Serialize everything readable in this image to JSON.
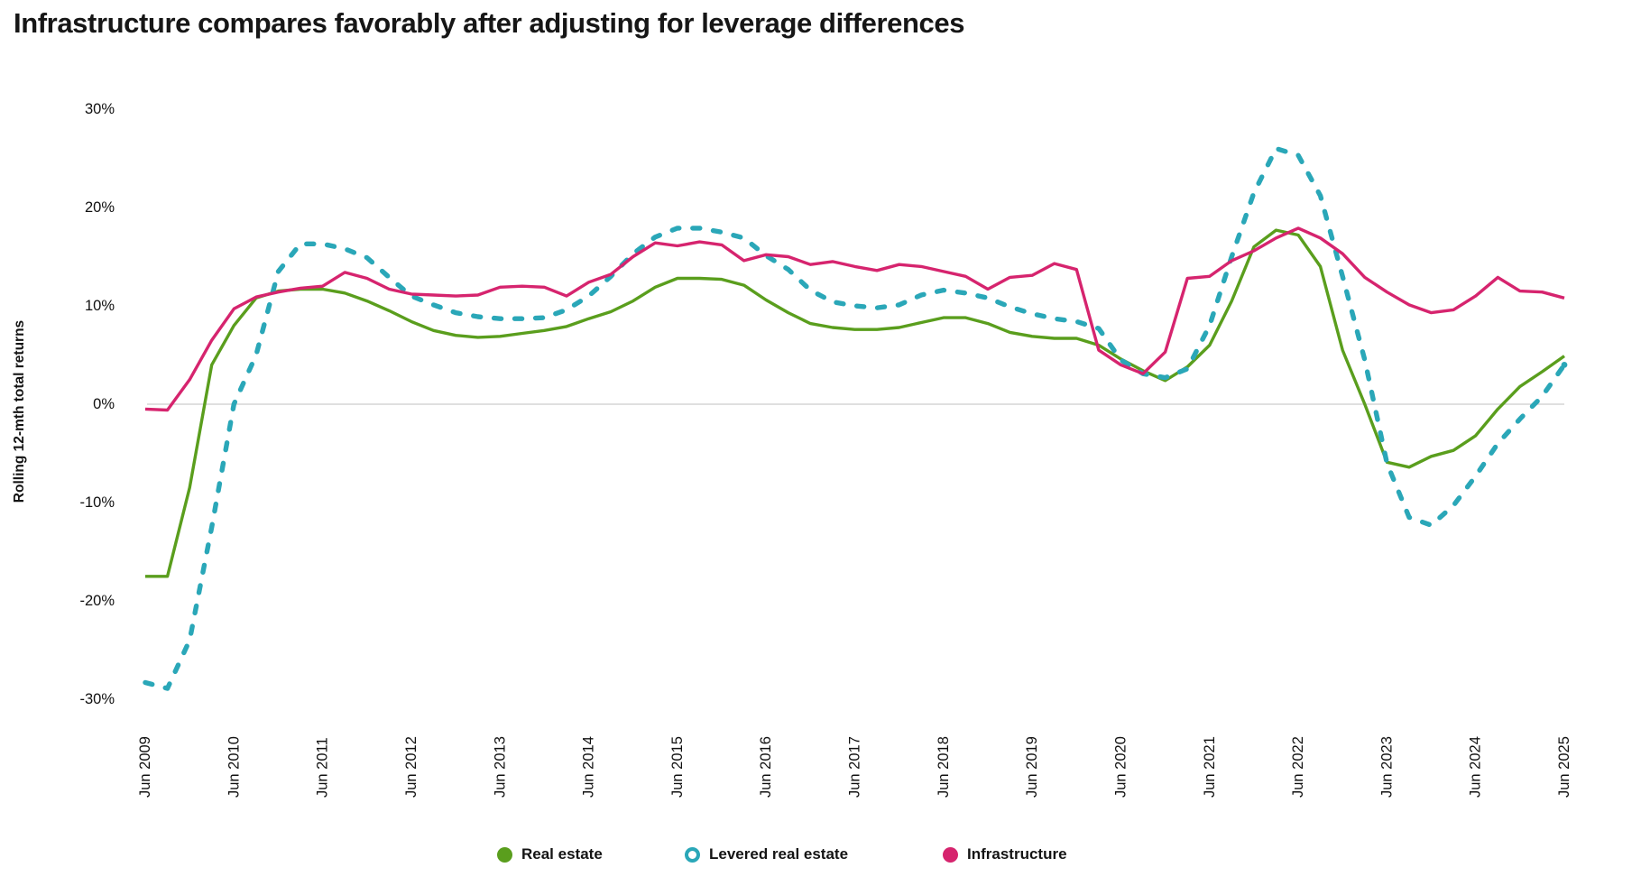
{
  "title": "Infrastructure compares favorably after adjusting for leverage differences",
  "y_axis": {
    "label": "Rolling 12-mth total returns",
    "ticks": [
      {
        "label": "30%",
        "value": 30
      },
      {
        "label": "20%",
        "value": 20
      },
      {
        "label": "10%",
        "value": 10
      },
      {
        "label": "0%",
        "value": 0
      },
      {
        "label": "-10%",
        "value": -10
      },
      {
        "label": "-20%",
        "value": -20
      },
      {
        "label": "-30%",
        "value": -30
      }
    ]
  },
  "x_axis": {
    "ticks": [
      "Jun 2009",
      "Jun 2010",
      "Jun 2011",
      "Jun 2012",
      "Jun 2013",
      "Jun 2014",
      "Jun 2015",
      "Jun 2016",
      "Jun 2017",
      "Jun 2018",
      "Jun 2019",
      "Jun 2020",
      "Jun 2021",
      "Jun 2022",
      "Jun 2023",
      "Jun 2024",
      "Jun 2025"
    ]
  },
  "legend": {
    "items": [
      {
        "label": "Real estate",
        "color": "#5a9e1d",
        "marker": "filled"
      },
      {
        "label": "Levered real estate",
        "color": "#2aa7b8",
        "marker": "ring"
      },
      {
        "label": "Infrastructure",
        "color": "#d6246e",
        "marker": "filled"
      }
    ]
  },
  "colors": {
    "real_estate": "#5a9e1d",
    "levered_real_estate": "#2aa7b8",
    "infrastructure": "#d6246e",
    "zero_gridline": "#cccccc",
    "text": "#111111",
    "title_text": "#161616"
  },
  "chart_data": {
    "type": "line",
    "title": "Infrastructure compares favorably after adjusting for leverage differences",
    "xlabel": "",
    "ylabel": "Rolling 12-mth total returns",
    "ylim": [
      -33,
      32
    ],
    "grid": "zero-line-only",
    "legend_position": "bottom",
    "x_frequency": "quarterly",
    "x_tick_labels": [
      "Jun 2009",
      "Jun 2010",
      "Jun 2011",
      "Jun 2012",
      "Jun 2013",
      "Jun 2014",
      "Jun 2015",
      "Jun 2016",
      "Jun 2017",
      "Jun 2018",
      "Jun 2019",
      "Jun 2020",
      "Jun 2021",
      "Jun 2022",
      "Jun 2023",
      "Jun 2024",
      "Jun 2025"
    ],
    "quarters": [
      "2009-06",
      "2009-09",
      "2009-12",
      "2010-03",
      "2010-06",
      "2010-09",
      "2010-12",
      "2011-03",
      "2011-06",
      "2011-09",
      "2011-12",
      "2012-03",
      "2012-06",
      "2012-09",
      "2012-12",
      "2013-03",
      "2013-06",
      "2013-09",
      "2013-12",
      "2014-03",
      "2014-06",
      "2014-09",
      "2014-12",
      "2015-03",
      "2015-06",
      "2015-09",
      "2015-12",
      "2016-03",
      "2016-06",
      "2016-09",
      "2016-12",
      "2017-03",
      "2017-06",
      "2017-09",
      "2017-12",
      "2018-03",
      "2018-06",
      "2018-09",
      "2018-12",
      "2019-03",
      "2019-06",
      "2019-09",
      "2019-12",
      "2020-03",
      "2020-06",
      "2020-09",
      "2020-12",
      "2021-03",
      "2021-06",
      "2021-09",
      "2021-12",
      "2022-03",
      "2022-06",
      "2022-09",
      "2022-12",
      "2023-03",
      "2023-06",
      "2023-09",
      "2023-12",
      "2024-03",
      "2024-06",
      "2024-09",
      "2024-12",
      "2025-03",
      "2025-06"
    ],
    "series": [
      {
        "name": "Real estate",
        "style": "solid",
        "color": "#5a9e1d",
        "values": [
          -17.5,
          -17.5,
          -8.5,
          4,
          8,
          10.8,
          11.5,
          11.7,
          11.7,
          11.3,
          10.5,
          9.5,
          8.4,
          7.5,
          7,
          6.8,
          6.9,
          7.2,
          7.5,
          7.9,
          8.7,
          9.4,
          10.5,
          11.9,
          12.8,
          12.8,
          12.7,
          12.1,
          10.6,
          9.3,
          8.2,
          7.8,
          7.6,
          7.6,
          7.8,
          8.3,
          8.8,
          8.8,
          8.2,
          7.3,
          6.9,
          6.7,
          6.7,
          6,
          4.6,
          3.4,
          2.4,
          3.8,
          6,
          10.5,
          16,
          17.7,
          17.2,
          14,
          5.5,
          0,
          -5.9,
          -6.4,
          -5.3,
          -4.7,
          -3.2,
          -0.5,
          1.8,
          3.3,
          4.9
        ]
      },
      {
        "name": "Levered real estate",
        "style": "dashed",
        "color": "#2aa7b8",
        "values": [
          -28.3,
          -28.9,
          -24,
          -12.5,
          0,
          5,
          13.5,
          16.3,
          16.3,
          15.8,
          14.9,
          12.9,
          11,
          10.1,
          9.3,
          8.9,
          8.7,
          8.7,
          8.8,
          9.6,
          11,
          13,
          15.3,
          17,
          17.9,
          17.9,
          17.5,
          16.9,
          15.1,
          13.7,
          11.6,
          10.4,
          10,
          9.8,
          10.1,
          11.1,
          11.6,
          11.3,
          10.8,
          9.9,
          9.2,
          8.7,
          8.4,
          7.7,
          4.5,
          3.1,
          2.7,
          3.6,
          8,
          15,
          21.5,
          26,
          25.3,
          21.2,
          13,
          4.5,
          -6,
          -11.5,
          -12.3,
          -10.3,
          -7.3,
          -4,
          -1.5,
          0.8,
          4
        ]
      },
      {
        "name": "Infrastructure",
        "style": "solid",
        "color": "#d6246e",
        "values": [
          -0.5,
          -0.6,
          2.5,
          6.5,
          9.7,
          10.9,
          11.4,
          11.8,
          12,
          13.4,
          12.8,
          11.7,
          11.2,
          11.1,
          11,
          11.1,
          11.9,
          12,
          11.9,
          11,
          12.4,
          13.2,
          15,
          16.4,
          16.1,
          16.5,
          16.2,
          14.6,
          15.2,
          15,
          14.2,
          14.5,
          14,
          13.6,
          14.2,
          14,
          13.5,
          13,
          11.7,
          12.9,
          13.1,
          14.3,
          13.7,
          5.5,
          4,
          3.1,
          5.3,
          12.8,
          13,
          14.6,
          15.6,
          16.9,
          17.9,
          16.9,
          15.3,
          12.9,
          11.4,
          10.1,
          9.3,
          9.6,
          11,
          12.9,
          11.5,
          11.4,
          10.8
        ]
      }
    ]
  }
}
